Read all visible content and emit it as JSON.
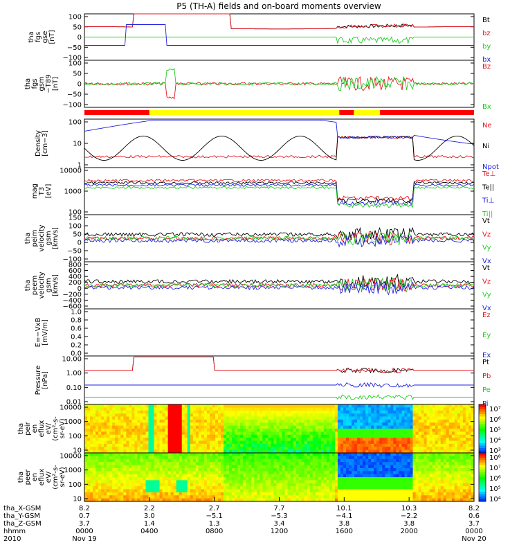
{
  "chart_data": {
    "type": "line",
    "title": "P5 (TH-A) fields and on-board moments overview",
    "panels": [
      {
        "id": "fgs_gse",
        "ylabel": [
          "tha",
          "fgs",
          "gse",
          "[nT]"
        ],
        "yticks": [
          "100",
          "50",
          "0",
          "−50",
          "−100"
        ],
        "ylim": [
          -100,
          100
        ],
        "legend": [
          {
            "text": "Bt",
            "color": "#000000"
          },
          {
            "text": "bz",
            "color": "#e8141e"
          },
          {
            "text": "by",
            "color": "#22cc22"
          },
          {
            "text": "bx",
            "color": "#2020e0"
          }
        ]
      },
      {
        "id": "fgs_gsm_t89",
        "ylabel": [
          "tha",
          "fgs",
          "gsm",
          "−T89",
          "[nT]"
        ],
        "yticks": [
          "100",
          "50",
          "0",
          "−50",
          "−100"
        ],
        "ylim": [
          -120,
          100
        ],
        "legend": [
          {
            "text": "Bz",
            "color": "#e8141e"
          },
          {
            "text": "Bx",
            "color": "#22cc22"
          }
        ]
      },
      {
        "id": "density",
        "ylabel": [
          "Density",
          "[cm−3]"
        ],
        "yticks": [
          "100",
          "10",
          "1"
        ],
        "scale": "log",
        "legend": [
          {
            "text": "Ne",
            "color": "#e8141e"
          },
          {
            "text": "Ni",
            "color": "#000000"
          },
          {
            "text": "Npot",
            "color": "#2020e0"
          }
        ]
      },
      {
        "id": "temperature",
        "ylabel": [
          "mag",
          "T3",
          "[eV]"
        ],
        "yticks": [
          "10000",
          "1000",
          "100"
        ],
        "scale": "log",
        "legend": [
          {
            "text": "Te⊥",
            "color": "#e8141e"
          },
          {
            "text": "Te||",
            "color": "#000000"
          },
          {
            "text": "Ti⊥",
            "color": "#2020e0"
          },
          {
            "text": "Ti||",
            "color": "#22cc22"
          }
        ]
      },
      {
        "id": "peim_velocity",
        "ylabel": [
          "tha",
          "peim",
          "velocity",
          "gsm",
          "[km/s]"
        ],
        "yticks": [
          "150",
          "100",
          "50",
          "0",
          "−50",
          "−100"
        ],
        "ylim": [
          -100,
          150
        ],
        "legend": [
          {
            "text": "Vt",
            "color": "#000000"
          },
          {
            "text": "Vz",
            "color": "#e8141e"
          },
          {
            "text": "Vy",
            "color": "#22cc22"
          },
          {
            "text": "Vx",
            "color": "#2020e0"
          }
        ]
      },
      {
        "id": "peem_velocity",
        "ylabel": [
          "tha",
          "peem",
          "velocity",
          "gsm",
          "[km/s]"
        ],
        "yticks": [
          "800",
          "600",
          "400",
          "200",
          "0",
          "−200",
          "−400",
          "−600"
        ],
        "ylim": [
          -600,
          800
        ],
        "legend": [
          {
            "text": "Vt",
            "color": "#000000"
          },
          {
            "text": "Vz",
            "color": "#e8141e"
          },
          {
            "text": "Vy",
            "color": "#22cc22"
          },
          {
            "text": "Vx",
            "color": "#2020e0"
          }
        ]
      },
      {
        "id": "efield",
        "ylabel": [
          "E=−VxB",
          "[mV/m]"
        ],
        "yticks": [
          "1.0",
          "0.8",
          "0.6",
          "0.4",
          "0.2",
          "0.0"
        ],
        "ylim": [
          0,
          1
        ],
        "legend": [
          {
            "text": "Ez",
            "color": "#e8141e"
          },
          {
            "text": "Ey",
            "color": "#22cc22"
          },
          {
            "text": "Ex",
            "color": "#2020e0"
          }
        ]
      },
      {
        "id": "pressure",
        "ylabel": [
          "Pressure",
          "[nPa]"
        ],
        "yticks": [
          "10.00",
          "1.00",
          "0.10",
          "0.01"
        ],
        "scale": "log",
        "legend": [
          {
            "text": "Pt",
            "color": "#000000"
          },
          {
            "text": "Pb",
            "color": "#e8141e"
          },
          {
            "text": "Pe",
            "color": "#22cc22"
          },
          {
            "text": "Pi",
            "color": "#2020e0"
          }
        ]
      },
      {
        "id": "peir_spec",
        "ylabel": [
          "tha",
          "peir",
          "en",
          "eflux",
          "eV/",
          "(cm²-s-",
          "sr-eV)"
        ],
        "yticks": [
          "10000",
          "1000",
          "100",
          "10"
        ],
        "colorbar_labels": [
          "10⁷",
          "10⁶",
          "10⁵",
          "10⁴",
          "10³"
        ],
        "spectrogram": true
      },
      {
        "id": "peer_spec",
        "ylabel": [
          "tha",
          "peer",
          "en",
          "eflux",
          "eV/",
          "(cm²-s-",
          "sr-eV)"
        ],
        "yticks": [
          "10000",
          "1000",
          "100",
          "10"
        ],
        "colorbar_labels": [
          "10⁸",
          "10⁷",
          "10⁶",
          "10⁵",
          "10⁴"
        ],
        "spectrogram": true
      }
    ],
    "x_axis": {
      "row_labels": [
        "tha_X-GSM",
        "tha_Y-GSM",
        "tha_Z-GSM",
        "hhmm",
        "2010"
      ],
      "ticks": [
        {
          "hhmm": "0000",
          "x": "8.2",
          "y": "0.7",
          "z": "3.7",
          "date": "Nov 19"
        },
        {
          "hhmm": "0400",
          "x": "2.2",
          "y": "3.0",
          "z": "1.4",
          "date": ""
        },
        {
          "hhmm": "0800",
          "x": "2.7",
          "y": "−5.1",
          "z": "1.3",
          "date": ""
        },
        {
          "hhmm": "1200",
          "x": "7.7",
          "y": "−5.3",
          "z": "3.4",
          "date": ""
        },
        {
          "hhmm": "1600",
          "x": "10.1",
          "y": "−4.1",
          "z": "3.8",
          "date": ""
        },
        {
          "hhmm": "2000",
          "x": "10.3",
          "y": "−2.2",
          "z": "3.8",
          "date": ""
        },
        {
          "hhmm": "0000",
          "x": "8.2",
          "y": "0.6",
          "z": "3.7",
          "date": "Nov 20"
        }
      ]
    },
    "mode_bar": [
      {
        "start_hour": 0.0,
        "end_hour": 4.0,
        "color": "#ff0000"
      },
      {
        "start_hour": 4.0,
        "end_hour": 15.7,
        "color": "#ffff00"
      },
      {
        "start_hour": 15.7,
        "end_hour": 16.6,
        "color": "#ff0000"
      },
      {
        "start_hour": 16.6,
        "end_hour": 18.2,
        "color": "#ffff00"
      },
      {
        "start_hour": 18.2,
        "end_hour": 24.0,
        "color": "#ff0000"
      }
    ]
  }
}
